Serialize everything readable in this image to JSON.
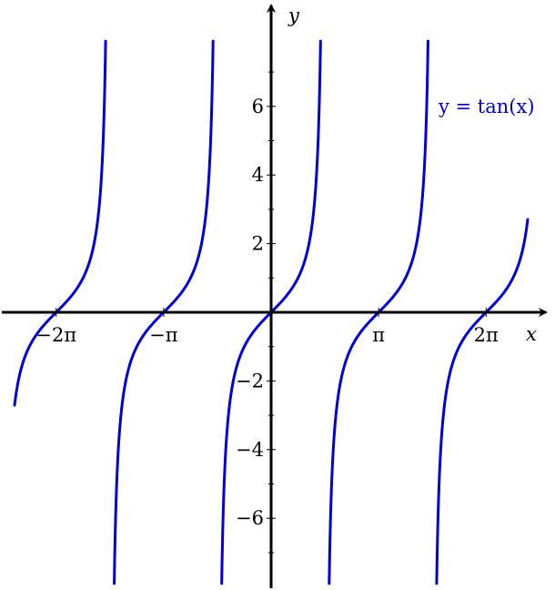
{
  "chart_data": {
    "type": "line",
    "title": "",
    "xlabel": "x",
    "ylabel": "y",
    "xlim": [
      -9.5,
      9.7
    ],
    "ylim": [
      -7.9,
      8.8
    ],
    "grid": false,
    "x_ticks": [
      {
        "value": -6.2832,
        "label": "−2π"
      },
      {
        "value": -3.1416,
        "label": "−π"
      },
      {
        "value": 3.1416,
        "label": "π"
      },
      {
        "value": 6.2832,
        "label": "2π"
      }
    ],
    "y_ticks": [
      {
        "value": -6,
        "label": "−6"
      },
      {
        "value": -4,
        "label": "−4"
      },
      {
        "value": -2,
        "label": "−2"
      },
      {
        "value": 2,
        "label": "2"
      },
      {
        "value": 4,
        "label": "4"
      },
      {
        "value": 6,
        "label": "6"
      }
    ],
    "y_minor_step": 1,
    "series": [
      {
        "name": "y = tan(x)",
        "function": "tan",
        "domain": [
          -7.5,
          7.5
        ],
        "y_clip": [
          -7.9,
          7.9
        ],
        "color": "#0000dd"
      }
    ]
  }
}
